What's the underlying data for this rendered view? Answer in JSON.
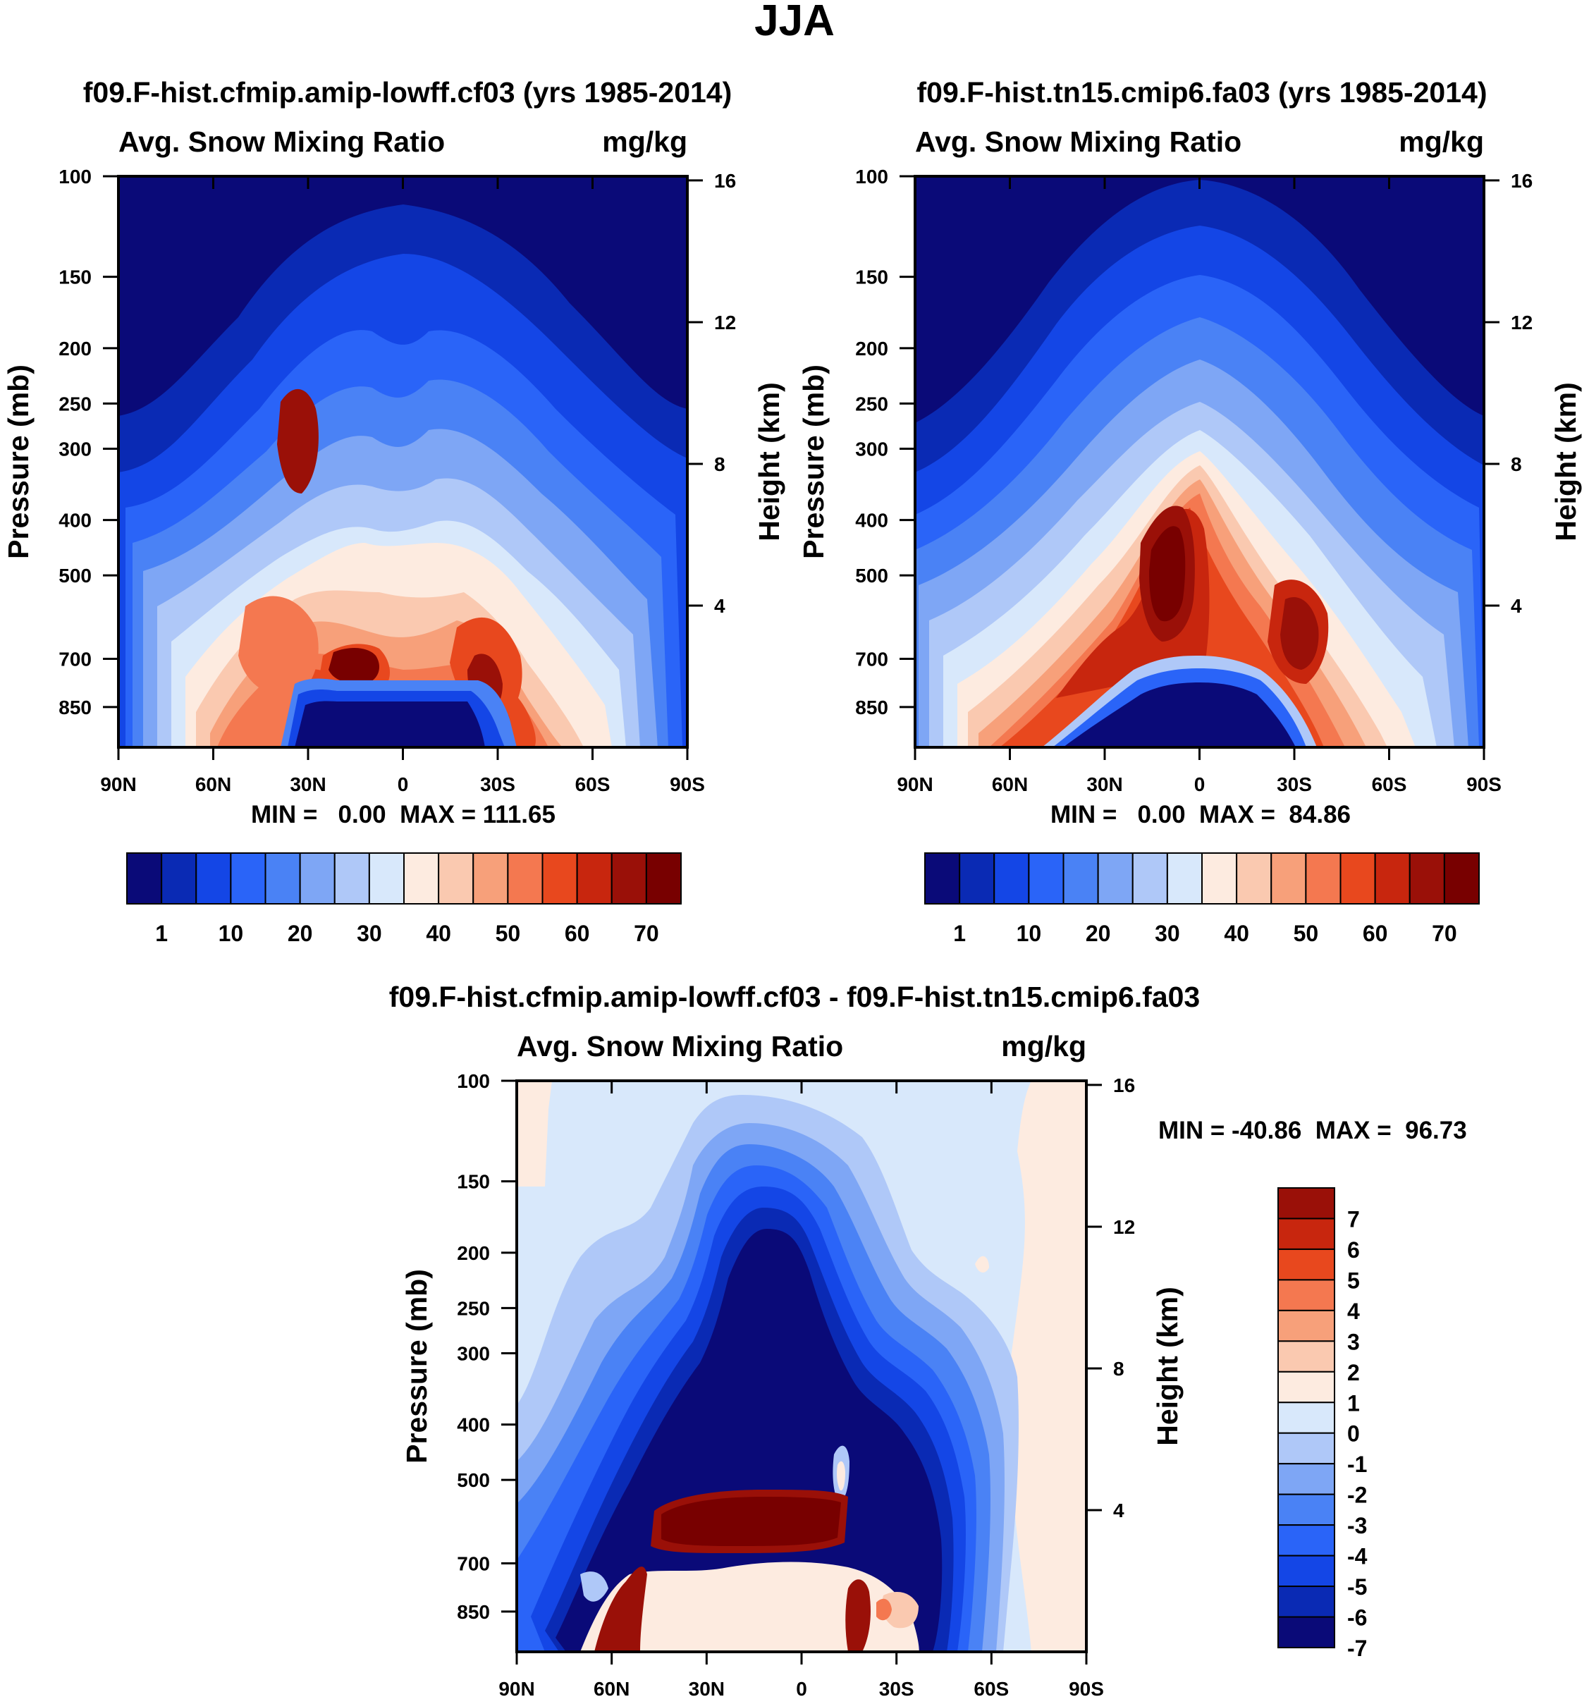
{
  "figure_title": "JJA",
  "colors": {
    "abs_palette": [
      "#0a0a78",
      "#0a2ab4",
      "#1446e6",
      "#2a64f8",
      "#4a82f5",
      "#7ea6f5",
      "#afc8f8",
      "#d8e8fb",
      "#fdebe0",
      "#fac9b0",
      "#f7a07a",
      "#f47850",
      "#e8481e",
      "#c8260e",
      "#9a1008",
      "#780000"
    ],
    "diff_palette": [
      "#0a0a78",
      "#0a2ab4",
      "#1446e6",
      "#2a64f8",
      "#4a82f5",
      "#7ea6f5",
      "#afc8f8",
      "#d8e8fb",
      "#fdebe0",
      "#fac9b0",
      "#f7a07a",
      "#f47850",
      "#e8481e",
      "#c8260e",
      "#9a1008"
    ]
  },
  "chart_data": [
    {
      "type": "heatmap",
      "title": "f09.F-hist.cfmip.amip-lowff.cf03 (yrs 1985-2014)",
      "left_label": "Avg. Snow Mixing Ratio",
      "right_label": "mg/kg",
      "ylabel": "Pressure (mb)",
      "ylabel_right": "Height (km)",
      "x_ticks": [
        "90N",
        "60N",
        "30N",
        "0",
        "30S",
        "60S",
        "90S"
      ],
      "xlim": [
        90,
        -90
      ],
      "y_ticks": [
        100,
        150,
        200,
        250,
        300,
        400,
        500,
        700,
        850
      ],
      "ylim": [
        100,
        1000
      ],
      "height_ticks": [
        16,
        12,
        8,
        4
      ],
      "stats": "MIN =   0.00  MAX = 111.65",
      "colorbar_labels": [
        "1",
        "10",
        "20",
        "30",
        "40",
        "50",
        "60",
        "70"
      ],
      "contour_levels": [
        1,
        5,
        10,
        15,
        20,
        25,
        30,
        35,
        40,
        45,
        50,
        55,
        60,
        65,
        70
      ],
      "features": {
        "max_value": 111.65,
        "min_value": 0.0,
        "max_location": "15N 700mb"
      }
    },
    {
      "type": "heatmap",
      "title": "f09.F-hist.tn15.cmip6.fa03 (yrs 1985-2014)",
      "left_label": "Avg. Snow Mixing Ratio",
      "right_label": "mg/kg",
      "ylabel": "Pressure (mb)",
      "ylabel_right": "Height (km)",
      "x_ticks": [
        "90N",
        "60N",
        "30N",
        "0",
        "30S",
        "60S",
        "90S"
      ],
      "xlim": [
        90,
        -90
      ],
      "y_ticks": [
        100,
        150,
        200,
        250,
        300,
        400,
        500,
        700,
        850
      ],
      "ylim": [
        100,
        1000
      ],
      "height_ticks": [
        16,
        12,
        8,
        4
      ],
      "stats": "MIN =   0.00  MAX =  84.86",
      "colorbar_labels": [
        "1",
        "10",
        "20",
        "30",
        "40",
        "50",
        "60",
        "70"
      ],
      "contour_levels": [
        1,
        5,
        10,
        15,
        20,
        25,
        30,
        35,
        40,
        45,
        50,
        55,
        60,
        65,
        70
      ],
      "features": {
        "max_value": 84.86,
        "min_value": 0.0,
        "max_location": "10N 450mb"
      }
    },
    {
      "type": "heatmap",
      "title": "f09.F-hist.cfmip.amip-lowff.cf03 - f09.F-hist.tn15.cmip6.fa03",
      "left_label": "Avg. Snow Mixing Ratio",
      "right_label": "mg/kg",
      "ylabel": "Pressure (mb)",
      "ylabel_right": "Height (km)",
      "x_ticks": [
        "90N",
        "60N",
        "30N",
        "0",
        "30S",
        "60S",
        "90S"
      ],
      "xlim": [
        90,
        -90
      ],
      "y_ticks": [
        100,
        150,
        200,
        250,
        300,
        400,
        500,
        700,
        850
      ],
      "ylim": [
        100,
        1000
      ],
      "height_ticks": [
        16,
        12,
        8,
        4
      ],
      "stats": "MIN = -40.86  MAX =  96.73",
      "colorbar_labels": [
        "7",
        "6",
        "5",
        "4",
        "3",
        "2",
        "1",
        "0",
        "-1",
        "-2",
        "-3",
        "-4",
        "-5",
        "-6",
        "-7"
      ],
      "contour_levels": [
        -7,
        -6,
        -5,
        -4,
        -3,
        -2,
        -1,
        0,
        1,
        2,
        3,
        4,
        5,
        6,
        7
      ],
      "features": {
        "max_value": 96.73,
        "min_value": -40.86,
        "max_location": "0-20N 700mb",
        "min_location": "30N-30S 300-600mb"
      }
    }
  ]
}
